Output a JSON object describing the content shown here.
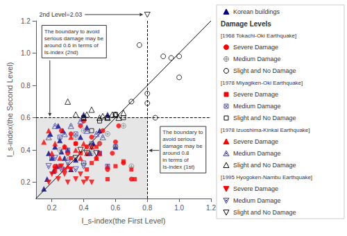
{
  "chart_data": {
    "type": "scatter",
    "xlabel": "I_s-index(the First Level)",
    "ylabel": "I_s-index(the Second Level)",
    "xlim": [
      0.1,
      1.2
    ],
    "ylim": [
      0.1,
      1.2
    ],
    "xticks": [
      0.2,
      0.4,
      0.6,
      0.8,
      {
        "value": 1.0,
        "label": "1.0"
      },
      1.2
    ],
    "yticks": [
      0.2,
      0.4,
      0.6,
      0.8,
      {
        "value": 1.0,
        "label": "1.0"
      },
      1.2
    ],
    "grid": false,
    "legend": "right",
    "legend_title": "Damage Levels",
    "level_note": "2nd Level=2.03",
    "annotations": [
      "The boundary to avoid\nserious damage may be\naround 0.6 in terms of\nIs-index (2nd)",
      "The boundary to\navoid serious\ndamage may be\naround 0.8\nin terms of\nIs-index (1st)"
    ],
    "diagonal_line": {
      "x": [
        0.1,
        1.2
      ],
      "y": [
        0.1,
        1.2
      ],
      "color": "black"
    },
    "vline": {
      "x": 0.8,
      "color": "black",
      "line_style": "dashed"
    },
    "hline": {
      "y": 0.6,
      "color": "black",
      "line_style": "dashed"
    },
    "shaded_region": {
      "x": [
        0.1,
        0.8
      ],
      "y": [
        0.1,
        0.6
      ],
      "color": "gray"
    },
    "series": [
      {
        "name": "Korean buildings",
        "color": "#00008B",
        "marker": "triangle",
        "x": [
          0.15,
          0.17,
          0.18,
          0.19,
          0.2,
          0.21,
          0.22,
          0.23,
          0.24,
          0.25,
          0.26,
          0.27,
          0.28,
          0.3,
          0.32,
          0.35,
          0.38,
          0.4,
          0.42,
          0.44,
          0.46,
          0.5,
          0.55,
          0.6
        ],
        "y": [
          0.16,
          0.22,
          0.38,
          0.5,
          0.35,
          0.27,
          0.42,
          0.3,
          0.55,
          0.46,
          0.39,
          0.52,
          0.35,
          0.4,
          0.28,
          0.34,
          0.48,
          0.62,
          0.54,
          0.38,
          0.44,
          0.52,
          0.62,
          0.42
        ]
      },
      {
        "name": "Severe Damage",
        "group": "[1968 Tokachi-Oki Earthquake]",
        "color": "red",
        "marker": "circle",
        "x": [
          0.22,
          0.26,
          0.28,
          0.3,
          0.32,
          0.35,
          0.38,
          0.4,
          0.42,
          0.45,
          0.48,
          0.5,
          0.52,
          0.55,
          0.58,
          0.6,
          0.62,
          0.65,
          0.7
        ],
        "y": [
          0.3,
          0.52,
          0.42,
          0.38,
          0.5,
          0.44,
          0.55,
          0.58,
          0.42,
          0.48,
          0.35,
          0.44,
          0.52,
          0.28,
          0.38,
          0.45,
          0.55,
          0.32,
          0.22
        ]
      },
      {
        "name": "Medium Damage",
        "group": "[1968 Tokachi-Oki Earthquake]",
        "color": "gray",
        "marker": "circle-plus",
        "x": [
          0.25,
          0.3,
          0.35,
          0.4,
          0.45,
          0.5,
          0.55,
          0.6,
          0.65,
          0.7
        ],
        "y": [
          0.4,
          0.35,
          0.48,
          0.52,
          0.38,
          0.44,
          0.5,
          0.42,
          0.55,
          0.3
        ]
      },
      {
        "name": "Slight and No Damage",
        "group": "[1968 Tokachi-Oki Earthquake]",
        "color": "black",
        "marker": "circle-open",
        "x": [
          0.6,
          0.7,
          0.8,
          0.85,
          0.9,
          0.95,
          1.0,
          1.0,
          0.75,
          0.8
        ],
        "y": [
          0.62,
          0.7,
          0.75,
          0.6,
          0.98,
          0.97,
          0.98,
          0.85,
          1.05,
          0.69
        ]
      },
      {
        "name": "Severe Damage",
        "group": "[1978 Miyagiken-Oki Earthquake]",
        "color": "red",
        "marker": "square",
        "x": [
          0.22,
          0.25,
          0.28,
          0.32,
          0.35,
          0.38,
          0.42,
          0.45,
          0.48,
          0.5,
          0.55,
          0.6,
          0.65,
          0.7,
          0.72
        ],
        "y": [
          0.27,
          0.3,
          0.28,
          0.35,
          0.44,
          0.38,
          0.28,
          0.32,
          0.42,
          0.38,
          0.22,
          0.3,
          0.33,
          0.28,
          0.22
        ]
      },
      {
        "name": "Medium Damage",
        "group": "[1978 Miyagiken-Oki Earthquake]",
        "color": "#4444aa",
        "marker": "square-x",
        "x": [
          0.2,
          0.25,
          0.3,
          0.35,
          0.4,
          0.45,
          0.5,
          0.55,
          0.6
        ],
        "y": [
          0.35,
          0.48,
          0.4,
          0.5,
          0.32,
          0.44,
          0.38,
          0.3,
          0.42
        ]
      },
      {
        "name": "Slight and No Damage",
        "group": "[1978 Miyagiken-Oki Earthquake]",
        "color": "black",
        "marker": "square-open",
        "x": [
          0.4,
          0.45,
          0.5,
          0.55,
          0.6,
          0.65
        ],
        "y": [
          0.6,
          0.52,
          0.58,
          0.6,
          0.62,
          0.6
        ]
      },
      {
        "name": "Severe Damage",
        "group": "[1978 Izuoshima-Kinkai Earthquake]",
        "color": "red",
        "marker": "triangle",
        "x": [
          0.15,
          0.18,
          0.2,
          0.22,
          0.25,
          0.28,
          0.3,
          0.32,
          0.35,
          0.38,
          0.4,
          0.42,
          0.45,
          0.48,
          0.5,
          0.55
        ],
        "y": [
          0.45,
          0.52,
          0.38,
          0.44,
          0.35,
          0.42,
          0.3,
          0.48,
          0.4,
          0.35,
          0.44,
          0.38,
          0.42,
          0.35,
          0.38,
          0.3
        ]
      },
      {
        "name": "Medium Damage",
        "group": "[1978 Izuoshima-Kinkai Earthquake]",
        "color": "#4444aa",
        "marker": "triangle-x",
        "x": [
          0.18,
          0.22,
          0.28,
          0.32,
          0.38,
          0.42,
          0.48,
          0.52
        ],
        "y": [
          0.48,
          0.55,
          0.5,
          0.55,
          0.58,
          0.52,
          0.5,
          0.48
        ]
      },
      {
        "name": "Slight and No Damage",
        "group": "[1978 Izuoshima-Kinkai Earthquake]",
        "color": "black",
        "marker": "triangle-open",
        "x": [
          0.3,
          0.35,
          0.4,
          0.42,
          0.45,
          0.5,
          0.52,
          0.55,
          0.58,
          0.6,
          0.62,
          0.65
        ],
        "y": [
          0.7,
          0.62,
          0.6,
          0.62,
          0.65,
          0.6,
          0.61,
          0.6,
          0.62,
          0.62,
          0.6,
          0.63
        ]
      },
      {
        "name": "Severe Damage",
        "group": "[1995 Hyogoken-Nambu Earthquake]",
        "color": "red",
        "marker": "triangle-down",
        "x": [
          0.18,
          0.2,
          0.22,
          0.24,
          0.26,
          0.28,
          0.3,
          0.32,
          0.35,
          0.38,
          0.4,
          0.42,
          0.45
        ],
        "y": [
          0.2,
          0.25,
          0.28,
          0.22,
          0.3,
          0.25,
          0.2,
          0.28,
          0.22,
          0.25,
          0.2,
          0.22,
          0.2
        ]
      },
      {
        "name": "Medium Damage",
        "group": "[1995 Hyogoken-Nambu Earthquake]",
        "color": "#4444aa",
        "marker": "triangle-down-x",
        "x": [
          0.18,
          0.22,
          0.26,
          0.3,
          0.35,
          0.4
        ],
        "y": [
          0.3,
          0.35,
          0.28,
          0.32,
          0.28,
          0.3
        ]
      },
      {
        "name": "Slight and No Damage",
        "group": "[1995 Hyogoken-Nambu Earthquake]",
        "color": "black",
        "marker": "triangle-down-open",
        "x": [
          0.35,
          0.38,
          0.42,
          0.45,
          0.48
        ],
        "y": [
          0.35,
          0.4,
          0.38,
          0.42,
          0.38
        ]
      }
    ]
  }
}
